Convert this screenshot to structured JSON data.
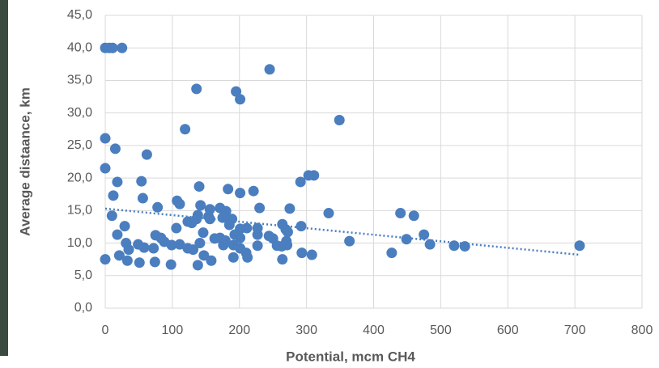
{
  "chart_data": {
    "type": "scatter",
    "x_label": "Potential, mcm CH4",
    "y_label": "Average distaance, km",
    "color": "#4a7ebf",
    "grid": true,
    "xlim": [
      0,
      800
    ],
    "ylim": [
      0,
      45
    ],
    "xticks": [
      0,
      100,
      200,
      300,
      400,
      500,
      600,
      700,
      800
    ],
    "yticks": [
      {
        "value": 0,
        "label": "0,0"
      },
      {
        "value": 5,
        "label": "5,0"
      },
      {
        "value": 10,
        "label": "10,0"
      },
      {
        "value": 15,
        "label": "15,0"
      },
      {
        "value": 20,
        "label": "20,0"
      },
      {
        "value": 25,
        "label": "25,0"
      },
      {
        "value": 30,
        "label": "30,0"
      },
      {
        "value": 35,
        "label": "35,0"
      },
      {
        "value": 40,
        "label": "40,0"
      },
      {
        "value": 45,
        "label": "45,0"
      }
    ],
    "x": [
      0,
      6,
      11,
      25,
      245,
      136,
      195,
      201,
      349,
      119,
      0,
      15,
      62,
      0,
      18,
      54,
      303,
      311,
      291,
      12,
      56,
      107,
      111,
      140,
      183,
      221,
      201,
      78,
      142,
      156,
      171,
      230,
      275,
      10,
      138,
      154,
      333,
      440,
      460,
      180,
      18,
      29,
      106,
      123,
      129,
      136,
      156,
      175,
      189,
      185,
      201,
      211,
      227,
      227,
      264,
      269,
      272,
      292,
      475,
      75,
      83,
      171,
      179,
      163,
      193,
      201,
      244,
      250,
      270,
      31,
      49,
      58,
      72,
      88,
      99,
      111,
      146,
      141,
      123,
      131,
      147,
      176,
      191,
      201,
      227,
      256,
      271,
      263,
      364,
      449,
      484,
      520,
      536,
      707,
      21,
      35,
      293,
      308,
      210,
      191,
      212,
      427,
      0,
      33,
      51,
      74,
      98,
      138,
      158,
      264
    ],
    "values": [
      40,
      40,
      40,
      40,
      36.7,
      33.7,
      33.3,
      32.1,
      28.9,
      27.5,
      26.1,
      24.5,
      23.6,
      21.5,
      19.4,
      19.5,
      20.4,
      20.4,
      19.4,
      17.3,
      16.9,
      16.5,
      16.0,
      18.7,
      18.3,
      18.0,
      17.7,
      15.5,
      15.8,
      15.2,
      15.4,
      15.4,
      15.3,
      14.2,
      14.3,
      14.1,
      14.6,
      14.6,
      14.2,
      14.9,
      11.3,
      12.6,
      12.3,
      13.3,
      13.1,
      13.7,
      13.7,
      13.9,
      13.7,
      12.8,
      12.2,
      12.3,
      12.3,
      11.3,
      12.9,
      12.1,
      11.7,
      12.6,
      11.3,
      11.2,
      10.8,
      10.8,
      10.4,
      10.7,
      11.3,
      10.8,
      11.1,
      10.7,
      10.3,
      10.0,
      9.8,
      9.3,
      9.2,
      10.2,
      9.7,
      9.8,
      11.6,
      10.0,
      9.2,
      9.0,
      8.1,
      9.7,
      9.7,
      9.2,
      9.6,
      9.6,
      9.7,
      9.5,
      10.3,
      10.6,
      9.8,
      9.6,
      9.5,
      9.6,
      8.1,
      9.0,
      8.5,
      8.2,
      8.5,
      7.8,
      7.8,
      8.5,
      7.5,
      7.3,
      7.0,
      7.1,
      6.7,
      6.6,
      7.3,
      7.5
    ],
    "trendline": {
      "x": [
        0,
        707
      ],
      "y": [
        15.3,
        8.2
      ],
      "color": "#4a7ebf"
    }
  }
}
